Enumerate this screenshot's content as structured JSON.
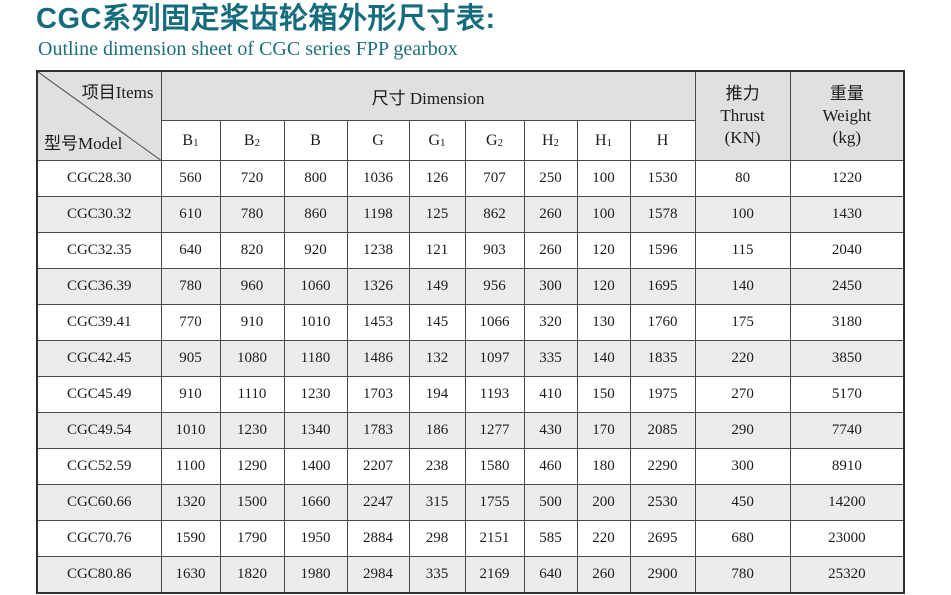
{
  "page": {
    "title": "CGC系列固定桨齿轮箱外形尺寸表:",
    "subtitle": "Outline dimension sheet of CGC series FPP gearbox"
  },
  "colors": {
    "title_teal": "#146c7c",
    "header_gray": "#e0e0e0",
    "alt_row_gray": "#ececec",
    "border_dark": "#303030"
  },
  "table": {
    "corner": {
      "top_right": "项目Items",
      "bottom_left": "型号Model"
    },
    "dimension_header": "尺寸  Dimension",
    "thrust_header": {
      "zh": "推力",
      "en": "Thrust",
      "unit": "(KN)"
    },
    "weight_header": {
      "zh": "重量",
      "en": "Weight",
      "unit": "(kg)"
    },
    "dim_columns": [
      {
        "base": "B",
        "sub": "1"
      },
      {
        "base": "B",
        "sub": "2"
      },
      {
        "base": "B",
        "sub": ""
      },
      {
        "base": "G",
        "sub": ""
      },
      {
        "base": "G",
        "sub": "1"
      },
      {
        "base": "G",
        "sub": "2"
      },
      {
        "base": "H",
        "sub": "2"
      },
      {
        "base": "H",
        "sub": "1"
      },
      {
        "base": "H",
        "sub": ""
      }
    ],
    "rows": [
      {
        "model": "CGC28.30",
        "values": [
          "560",
          "720",
          "800",
          "1036",
          "126",
          "707",
          "250",
          "100",
          "1530",
          "80",
          "1220"
        ]
      },
      {
        "model": "CGC30.32",
        "values": [
          "610",
          "780",
          "860",
          "1198",
          "125",
          "862",
          "260",
          "100",
          "1578",
          "100",
          "1430"
        ]
      },
      {
        "model": "CGC32.35",
        "values": [
          "640",
          "820",
          "920",
          "1238",
          "121",
          "903",
          "260",
          "120",
          "1596",
          "115",
          "2040"
        ]
      },
      {
        "model": "CGC36.39",
        "values": [
          "780",
          "960",
          "1060",
          "1326",
          "149",
          "956",
          "300",
          "120",
          "1695",
          "140",
          "2450"
        ]
      },
      {
        "model": "CGC39.41",
        "values": [
          "770",
          "910",
          "1010",
          "1453",
          "145",
          "1066",
          "320",
          "130",
          "1760",
          "175",
          "3180"
        ]
      },
      {
        "model": "CGC42.45",
        "values": [
          "905",
          "1080",
          "1180",
          "1486",
          "132",
          "1097",
          "335",
          "140",
          "1835",
          "220",
          "3850"
        ]
      },
      {
        "model": "CGC45.49",
        "values": [
          "910",
          "1110",
          "1230",
          "1703",
          "194",
          "1193",
          "410",
          "150",
          "1975",
          "270",
          "5170"
        ]
      },
      {
        "model": "CGC49.54",
        "values": [
          "1010",
          "1230",
          "1340",
          "1783",
          "186",
          "1277",
          "430",
          "170",
          "2085",
          "290",
          "7740"
        ]
      },
      {
        "model": "CGC52.59",
        "values": [
          "1100",
          "1290",
          "1400",
          "2207",
          "238",
          "1580",
          "460",
          "180",
          "2290",
          "300",
          "8910"
        ]
      },
      {
        "model": "CGC60.66",
        "values": [
          "1320",
          "1500",
          "1660",
          "2247",
          "315",
          "1755",
          "500",
          "200",
          "2530",
          "450",
          "14200"
        ]
      },
      {
        "model": "CGC70.76",
        "values": [
          "1590",
          "1790",
          "1950",
          "2884",
          "298",
          "2151",
          "585",
          "220",
          "2695",
          "680",
          "23000"
        ]
      },
      {
        "model": "CGC80.86",
        "values": [
          "1630",
          "1820",
          "1980",
          "2984",
          "335",
          "2169",
          "640",
          "260",
          "2900",
          "780",
          "25320"
        ]
      }
    ]
  }
}
